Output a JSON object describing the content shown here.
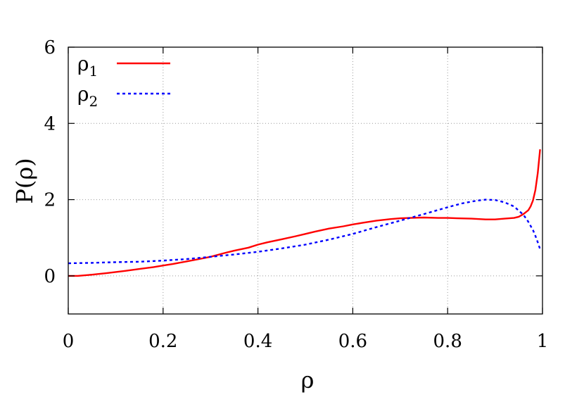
{
  "chart_data": {
    "type": "line",
    "xlabel": "ρ",
    "ylabel": "P(ρ)",
    "xlim": [
      0,
      1
    ],
    "ylim": [
      -1,
      6
    ],
    "grid": true,
    "legend_position": "top-left",
    "x_ticks": [
      0,
      0.2,
      0.4,
      0.6,
      0.8,
      1
    ],
    "x_tick_labels": [
      "0",
      "0.2",
      "0.4",
      "0.6",
      "0.8",
      "1"
    ],
    "y_ticks": [
      0,
      2,
      4,
      6
    ],
    "y_tick_labels": [
      "0",
      "2",
      "4",
      "6"
    ],
    "series": [
      {
        "name": "ρ",
        "subscript": "1",
        "color": "#ff0000",
        "dash": "solid",
        "x": [
          0.0,
          0.02,
          0.05,
          0.08,
          0.1,
          0.12,
          0.15,
          0.18,
          0.2,
          0.22,
          0.25,
          0.28,
          0.3,
          0.33,
          0.35,
          0.38,
          0.4,
          0.42,
          0.45,
          0.48,
          0.5,
          0.52,
          0.55,
          0.58,
          0.6,
          0.62,
          0.65,
          0.68,
          0.7,
          0.72,
          0.75,
          0.78,
          0.8,
          0.82,
          0.85,
          0.88,
          0.9,
          0.92,
          0.94,
          0.95,
          0.96,
          0.97,
          0.975,
          0.98,
          0.985,
          0.99,
          0.995
        ],
        "y": [
          0.0,
          0.0,
          0.03,
          0.07,
          0.1,
          0.13,
          0.18,
          0.23,
          0.27,
          0.31,
          0.38,
          0.45,
          0.5,
          0.6,
          0.66,
          0.74,
          0.82,
          0.88,
          0.96,
          1.04,
          1.1,
          1.16,
          1.24,
          1.3,
          1.35,
          1.39,
          1.45,
          1.49,
          1.51,
          1.52,
          1.53,
          1.52,
          1.52,
          1.51,
          1.5,
          1.48,
          1.48,
          1.5,
          1.52,
          1.55,
          1.62,
          1.72,
          1.82,
          1.98,
          2.25,
          2.7,
          3.32
        ]
      },
      {
        "name": "ρ",
        "subscript": "2",
        "color": "#0000ff",
        "dash": "dotted",
        "x": [
          0.0,
          0.05,
          0.1,
          0.15,
          0.2,
          0.25,
          0.3,
          0.35,
          0.4,
          0.45,
          0.5,
          0.55,
          0.6,
          0.65,
          0.7,
          0.75,
          0.8,
          0.83,
          0.86,
          0.88,
          0.9,
          0.92,
          0.94,
          0.96,
          0.97,
          0.98,
          0.985,
          0.99,
          0.995
        ],
        "y": [
          0.33,
          0.34,
          0.36,
          0.37,
          0.4,
          0.44,
          0.5,
          0.56,
          0.63,
          0.72,
          0.82,
          0.95,
          1.1,
          1.28,
          1.45,
          1.62,
          1.8,
          1.9,
          1.97,
          2.0,
          1.99,
          1.93,
          1.82,
          1.6,
          1.42,
          1.2,
          1.05,
          0.88,
          0.7
        ]
      }
    ]
  }
}
